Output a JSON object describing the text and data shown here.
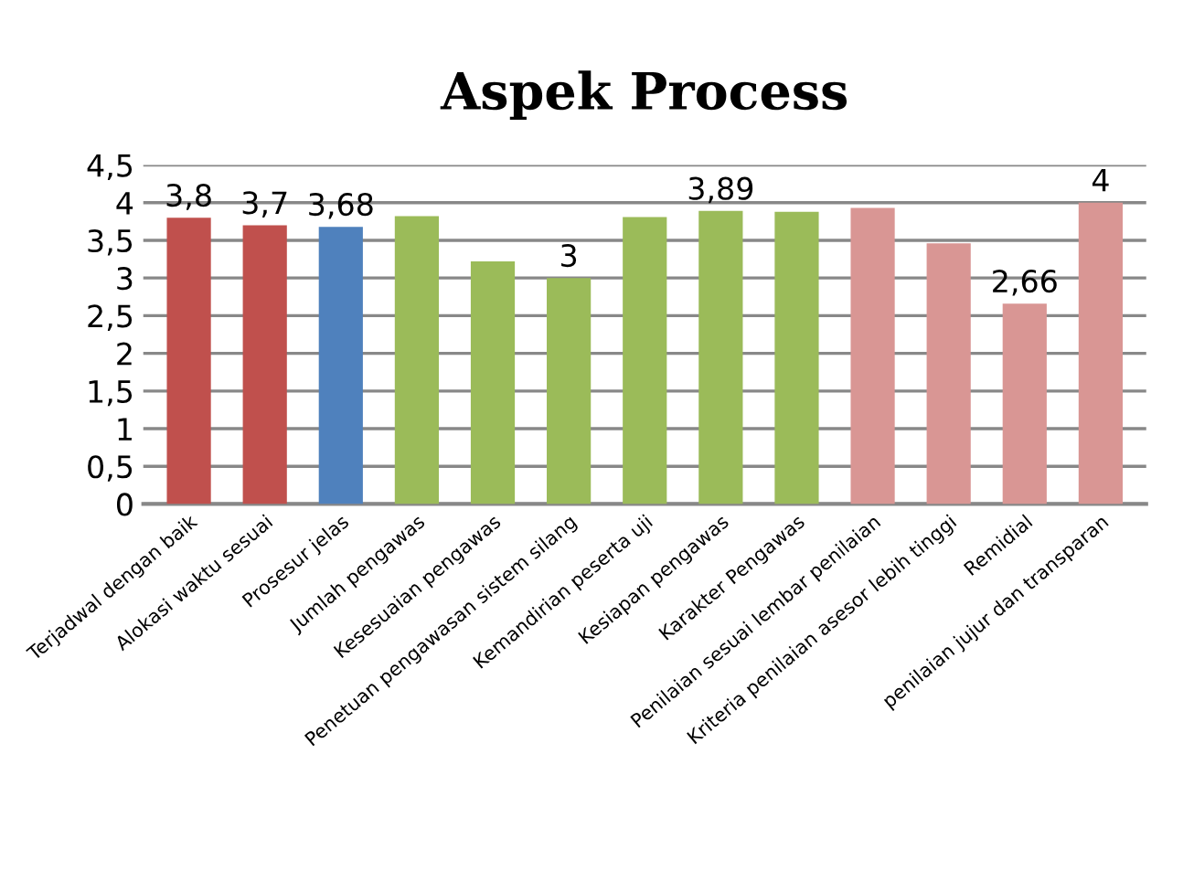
{
  "chart_data": {
    "type": "bar",
    "title": "Aspek Process",
    "categories": [
      "Terjadwal dengan baik",
      "Alokasi waktu sesuai",
      "Prosesur jelas",
      "Jumlah pengawas",
      "Kesesuaian pengawas",
      "Penetuan pengawasan sistem silang",
      "Kemandirian peserta uji",
      "Kesiapan pengawas",
      "Karakter Pengawas",
      "Penilaian sesuai lembar penilaian",
      "Kriteria penilaian asesor lebih tinggi",
      "Remidial",
      "penilaian jujur dan transparan"
    ],
    "values": [
      3.8,
      3.7,
      3.68,
      3.82,
      3.22,
      3,
      3.81,
      3.89,
      3.88,
      3.93,
      3.46,
      2.66,
      4
    ],
    "colors": [
      "#c0504d",
      "#c0504d",
      "#4f81bd",
      "#9bbb59",
      "#9bbb59",
      "#9bbb59",
      "#9bbb59",
      "#9bbb59",
      "#9bbb59",
      "#d99694",
      "#d99694",
      "#d99694",
      "#d99694"
    ],
    "value_labels": [
      "3,8",
      "3,7",
      "3,68",
      null,
      null,
      "3",
      null,
      "3,89",
      null,
      null,
      null,
      "2,66",
      "4"
    ],
    "ylim": [
      0,
      4.5
    ],
    "yticks": [
      0,
      {
        "value": 0.5,
        "label": "0,5"
      },
      1,
      {
        "value": 1.5,
        "label": "1,5"
      },
      2,
      {
        "value": 2.5,
        "label": "2,5"
      },
      3,
      {
        "value": 3.5,
        "label": "3,5"
      },
      4,
      {
        "value": 4.5,
        "label": "4,5"
      }
    ],
    "grid": "y",
    "legend": false
  }
}
